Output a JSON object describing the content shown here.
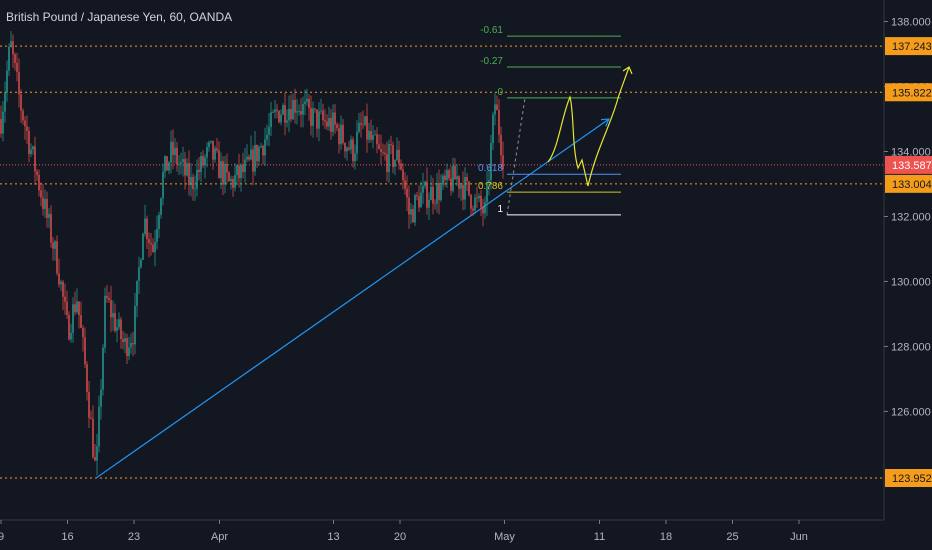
{
  "header": {
    "title": "British Pound / Japanese Yen, 60, OANDA"
  },
  "colors": {
    "background": "#131722",
    "up": "#26a69a",
    "down": "#ef5350",
    "level": "#f59c1a",
    "current_price": "#ef5350",
    "trendline": "#2196f3",
    "projection": "#e6e62e",
    "fib_green": "#4caf50",
    "fib_blue": "#5b8def",
    "fib_yellow": "#d6c21e",
    "fib_white": "#ffffff"
  },
  "chart_data": {
    "type": "candlestick",
    "symbol": "GBPJPY",
    "timeframe": "60",
    "x_ticks": [
      "9",
      "16",
      "23",
      "Apr",
      "13",
      "20",
      "May",
      "11",
      "18",
      "25",
      "Jun"
    ],
    "y_ticks": [
      126.0,
      128.0,
      130.0,
      132.0,
      134.0,
      136.0,
      138.0
    ],
    "ylim": [
      122.5,
      138.7
    ],
    "grid": false,
    "price_labels": [
      {
        "value": "137.243",
        "style": "level"
      },
      {
        "value": "135.822",
        "style": "level"
      },
      {
        "value": "133.587",
        "style": "current"
      },
      {
        "value": "133.004",
        "style": "level"
      },
      {
        "value": "123.952",
        "style": "level"
      }
    ],
    "horizontal_levels": [
      137.243,
      135.822,
      133.587,
      133.004,
      123.952
    ],
    "fib_levels": [
      {
        "label": "-0.61",
        "value": 137.55,
        "color": "green"
      },
      {
        "label": "-0.27",
        "value": 136.6,
        "color": "green"
      },
      {
        "label": "0",
        "value": 135.65,
        "color": "green"
      },
      {
        "label": "0.618",
        "value": 133.3,
        "color": "blue"
      },
      {
        "label": "0.786",
        "value": 132.75,
        "color": "yellow"
      },
      {
        "label": "1",
        "value": 132.05,
        "color": "white"
      }
    ],
    "trendline": {
      "from": {
        "date": "2020-03-19",
        "price": 123.95
      },
      "to": {
        "date": "2020-05-12",
        "price": 135.0
      }
    },
    "candles_summary": [
      {
        "date": "2020-03-09",
        "price": 135.0
      },
      {
        "date": "2020-03-10",
        "price": 137.3
      },
      {
        "date": "2020-03-11",
        "price": 135.5
      },
      {
        "date": "2020-03-13",
        "price": 133.0
      },
      {
        "date": "2020-03-15",
        "price": 130.5
      },
      {
        "date": "2020-03-16",
        "price": 128.5
      },
      {
        "date": "2020-03-17",
        "price": 129.5
      },
      {
        "date": "2020-03-18",
        "price": 127.0
      },
      {
        "date": "2020-03-19",
        "price": 124.0
      },
      {
        "date": "2020-03-20",
        "price": 129.5
      },
      {
        "date": "2020-03-22",
        "price": 128.0
      },
      {
        "date": "2020-03-23",
        "price": 128.5
      },
      {
        "date": "2020-03-24",
        "price": 132.0
      },
      {
        "date": "2020-03-25",
        "price": 131.0
      },
      {
        "date": "2020-03-26",
        "price": 133.2
      },
      {
        "date": "2020-03-27",
        "price": 134.0
      },
      {
        "date": "2020-03-29",
        "price": 133.0
      },
      {
        "date": "2020-03-31",
        "price": 134.0
      },
      {
        "date": "2020-04-02",
        "price": 133.0
      },
      {
        "date": "2020-04-04",
        "price": 133.5
      },
      {
        "date": "2020-04-06",
        "price": 134.5
      },
      {
        "date": "2020-04-07",
        "price": 135.2
      },
      {
        "date": "2020-04-09",
        "price": 135.5
      },
      {
        "date": "2020-04-11",
        "price": 135.0
      },
      {
        "date": "2020-04-13",
        "price": 134.8
      },
      {
        "date": "2020-04-15",
        "price": 134.0
      },
      {
        "date": "2020-04-16",
        "price": 134.8
      },
      {
        "date": "2020-04-18",
        "price": 133.8
      },
      {
        "date": "2020-04-20",
        "price": 133.8
      },
      {
        "date": "2020-04-21",
        "price": 132.0
      },
      {
        "date": "2020-04-22",
        "price": 132.6
      },
      {
        "date": "2020-04-24",
        "price": 132.8
      },
      {
        "date": "2020-04-26",
        "price": 133.2
      },
      {
        "date": "2020-04-28",
        "price": 132.4
      },
      {
        "date": "2020-04-29",
        "price": 132.1
      },
      {
        "date": "2020-04-30",
        "price": 135.5
      },
      {
        "date": "2020-05-01",
        "price": 133.6
      }
    ]
  }
}
